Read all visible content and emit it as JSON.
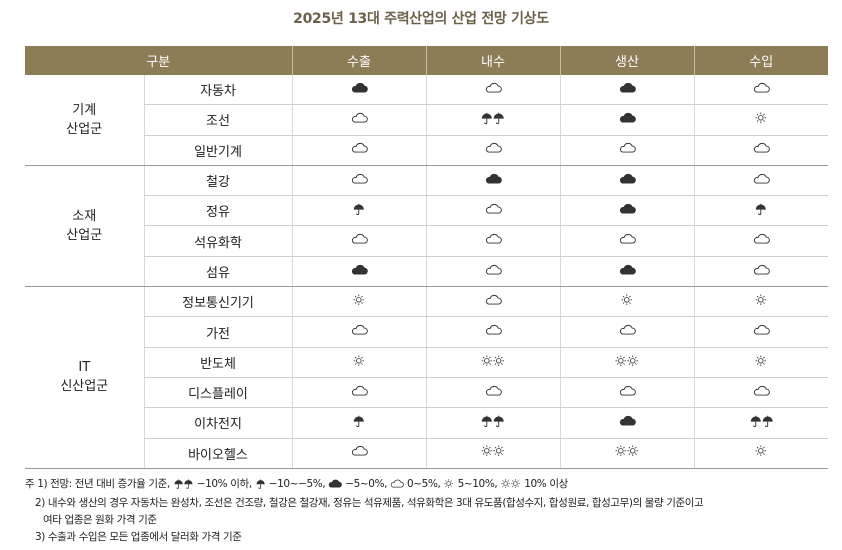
{
  "title": "2025년 13대 주력산업의 산업 전망 기상도",
  "headers": [
    "구분",
    "수출",
    "내수",
    "생산",
    "수입"
  ],
  "groups": [
    {
      "name_lines": [
        "기계",
        "산업군"
      ],
      "rows": [
        {
          "item": "자동차",
          "values": [
            "cloudy",
            "partly",
            "cloudy",
            "partly"
          ]
        },
        {
          "item": "조선",
          "values": [
            "partly",
            "rain2",
            "cloudy",
            "sunny"
          ]
        },
        {
          "item": "일반기계",
          "values": [
            "partly",
            "partly",
            "partly",
            "partly"
          ]
        }
      ]
    },
    {
      "name_lines": [
        "소재",
        "산업군"
      ],
      "rows": [
        {
          "item": "철강",
          "values": [
            "partly",
            "cloudy",
            "cloudy",
            "partly"
          ]
        },
        {
          "item": "정유",
          "values": [
            "rain",
            "partly",
            "cloudy",
            "rain"
          ]
        },
        {
          "item": "석유화학",
          "values": [
            "partly",
            "partly",
            "partly",
            "partly"
          ]
        },
        {
          "item": "섬유",
          "values": [
            "cloudy",
            "partly",
            "cloudy",
            "partly"
          ]
        }
      ]
    },
    {
      "name_lines": [
        "IT",
        "신산업군"
      ],
      "rows": [
        {
          "item": "정보통신기기",
          "values": [
            "sunny",
            "partly",
            "sunny",
            "sunny"
          ]
        },
        {
          "item": "가전",
          "values": [
            "partly",
            "partly",
            "partly",
            "partly"
          ]
        },
        {
          "item": "반도체",
          "values": [
            "sunny",
            "sunny2",
            "sunny2",
            "sunny"
          ]
        },
        {
          "item": "디스플레이",
          "values": [
            "partly",
            "partly",
            "partly",
            "partly"
          ]
        },
        {
          "item": "이차전지",
          "values": [
            "rain",
            "rain2",
            "cloudy",
            "rain2"
          ]
        },
        {
          "item": "바이오헬스",
          "values": [
            "partly",
            "sunny2",
            "sunny2",
            "sunny"
          ]
        }
      ]
    }
  ],
  "icon_names": {
    "rain2": "double-umbrella-icon",
    "rain": "umbrella-icon",
    "cloudy": "filled-cloud-icon",
    "partly": "outline-cloud-icon",
    "sunny": "sun-icon",
    "sunny2": "double-sun-icon"
  },
  "notes": {
    "n1_prefix": "주 1) 전망: 전년 대비 증가율 기준,",
    "n1_rain2": "−10% 이하,",
    "n1_rain": "−10~−5%,",
    "n1_cloudy": "−5~0%,",
    "n1_partly": "0~5%,",
    "n1_sunny": "5~10%,",
    "n1_sunny2": "10% 이상",
    "n2a": "2) 내수와 생산의 경우 자동차는 완성차, 조선은 건조량, 철강은 철강재, 정유는 석유제품, 석유화학은 3대 유도품(합성수지, 합성원료, 합성고무)의 물량 기준이고",
    "n2b": "여타 업종은 원화 가격 기준",
    "n3": "3) 수출과 수입은 모든 업종에서 달러화 가격 기준"
  },
  "colors": {
    "header_bg": "#8c7d57",
    "title": "#6b6248",
    "icon": "#333333"
  }
}
